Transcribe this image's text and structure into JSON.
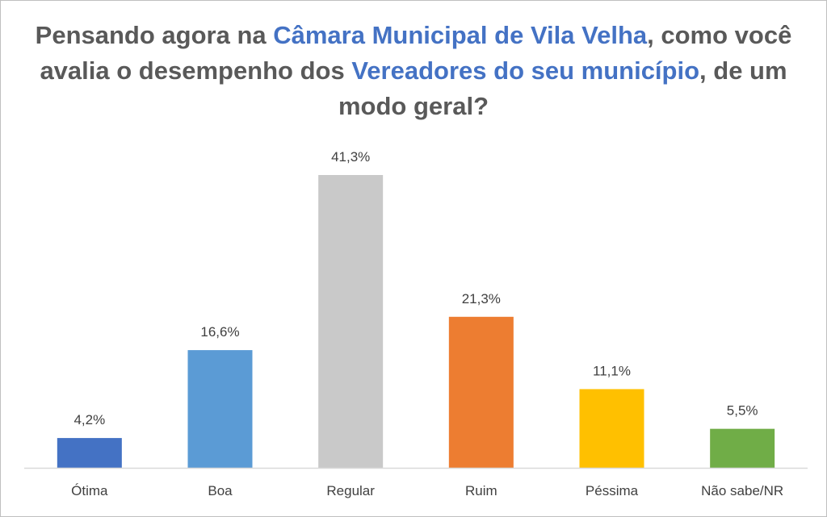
{
  "chart_data": {
    "type": "bar",
    "title_parts": [
      {
        "text": "Pensando agora na ",
        "highlight": false
      },
      {
        "text": "Câmara Municipal de Vila Velha",
        "highlight": true
      },
      {
        "text": ", como você avalia o desempenho dos ",
        "highlight": false
      },
      {
        "text": "Vereadores do seu município",
        "highlight": true
      },
      {
        "text": ", de um modo geral?",
        "highlight": false
      }
    ],
    "categories": [
      "Ótima",
      "Boa",
      "Regular",
      "Ruim",
      "Péssima",
      "Não sabe/NR"
    ],
    "values": [
      4.2,
      16.6,
      41.3,
      21.3,
      11.1,
      5.5
    ],
    "value_labels": [
      "4,2%",
      "16,6%",
      "41,3%",
      "21,3%",
      "11,1%",
      "5,5%"
    ],
    "colors": [
      "#4472c4",
      "#5b9bd5",
      "#c9c9c9",
      "#ed7d31",
      "#ffc000",
      "#70ad47"
    ],
    "ylim": [
      0,
      41.3
    ],
    "grid": false,
    "legend": "none"
  }
}
